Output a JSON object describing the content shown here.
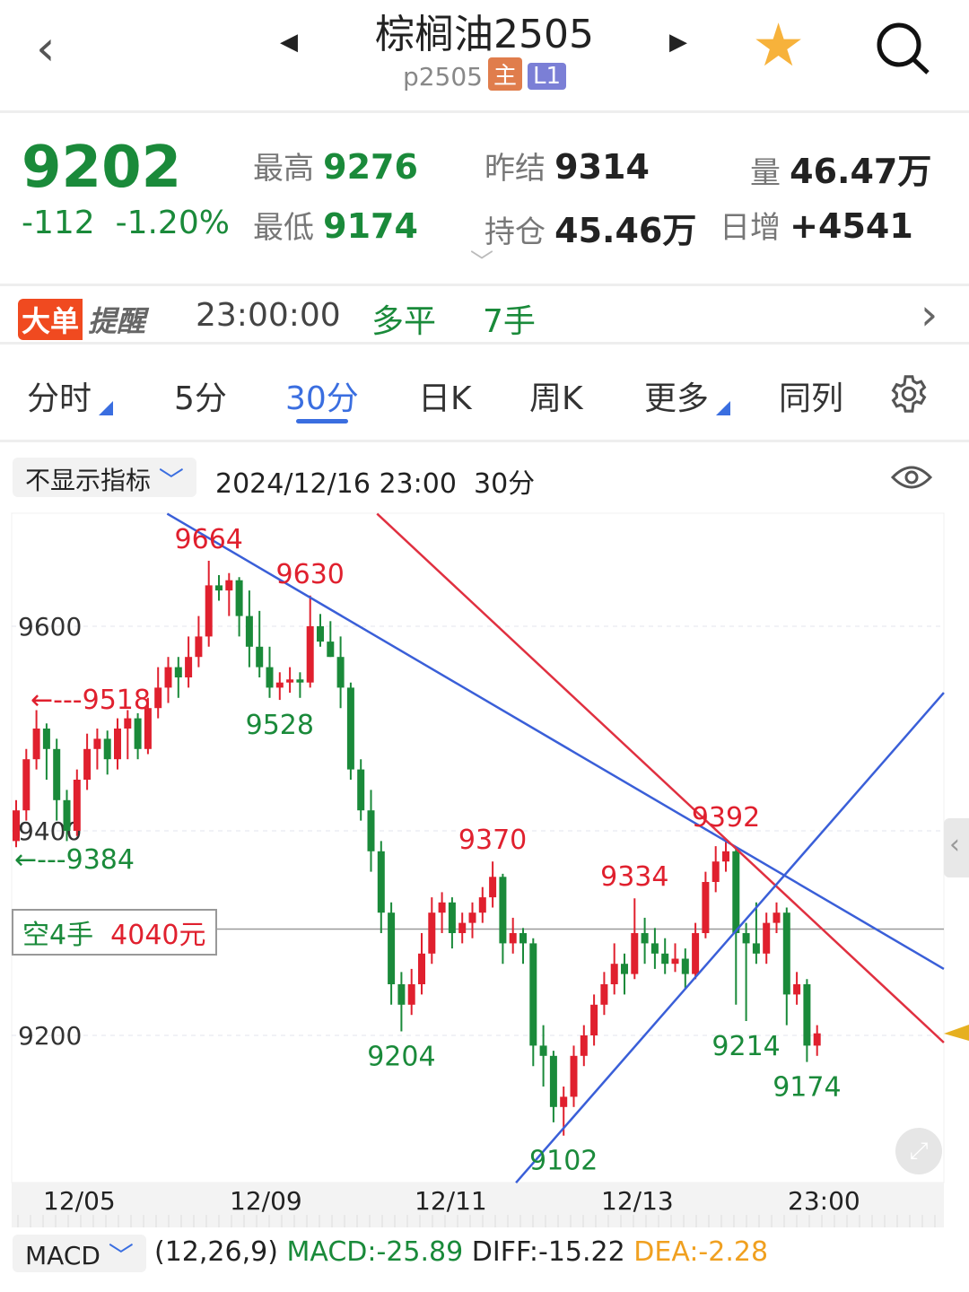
{
  "header": {
    "title": "棕榈油2505",
    "code": "p2505",
    "badge_main": "主",
    "badge_l1": "L1",
    "badge_main_color": "#e07d4c",
    "badge_l1_color": "#7b7fd6"
  },
  "quote": {
    "price": "9202",
    "change": "-112",
    "change_pct": "-1.20%",
    "high_label": "最高",
    "high": "9276",
    "low_label": "最低",
    "low": "9174",
    "prev_settle_label": "昨结",
    "prev_settle": "9314",
    "open_interest_label": "持仓",
    "open_interest": "45.46万",
    "volume_label": "量",
    "volume": "46.47万",
    "daily_inc_label": "日增",
    "daily_inc": "+4541"
  },
  "alert": {
    "tag1": "大单",
    "tag2": "提醒",
    "time": "23:00:00",
    "type": "多平",
    "qty": "7手"
  },
  "tabs": [
    {
      "label": "分时"
    },
    {
      "label": "5分"
    },
    {
      "label": "30分",
      "active": true
    },
    {
      "label": "日K"
    },
    {
      "label": "周K"
    },
    {
      "label": "更多"
    },
    {
      "label": "同列"
    }
  ],
  "indicator_bar": {
    "select": "不显示指标",
    "datetime": "2024/12/16 23:00",
    "period": "30分"
  },
  "position_tag": {
    "side": "空4手",
    "pnl": "4040元"
  },
  "macd": {
    "select": "MACD",
    "params": "(12,26,9)",
    "macd": "MACD:-25.89",
    "diff": "DIFF:-15.22",
    "dea": "DEA:-2.28"
  },
  "colors": {
    "up": "#e0202e",
    "down": "#1a8a3a",
    "accent": "#3a6ee0",
    "dea": "#f0a020"
  },
  "chart_data": {
    "type": "candlestick",
    "y_ticks": [
      "9600",
      "9400",
      "9200"
    ],
    "x_ticks": [
      "12/05",
      "12/09",
      "12/11",
      "12/13",
      "23:00"
    ],
    "grid": true,
    "candles": [
      [
        9390,
        9430,
        9384,
        9420
      ],
      [
        9420,
        9480,
        9410,
        9470
      ],
      [
        9470,
        9518,
        9460,
        9500
      ],
      [
        9500,
        9505,
        9450,
        9480
      ],
      [
        9480,
        9490,
        9410,
        9430
      ],
      [
        9430,
        9440,
        9390,
        9400
      ],
      [
        9400,
        9460,
        9395,
        9450
      ],
      [
        9450,
        9495,
        9440,
        9480
      ],
      [
        9480,
        9500,
        9460,
        9490
      ],
      [
        9490,
        9498,
        9455,
        9470
      ],
      [
        9470,
        9510,
        9460,
        9500
      ],
      [
        9500,
        9518,
        9470,
        9510
      ],
      [
        9510,
        9515,
        9470,
        9480
      ],
      [
        9480,
        9530,
        9475,
        9520
      ],
      [
        9520,
        9560,
        9510,
        9540
      ],
      [
        9540,
        9570,
        9525,
        9560
      ],
      [
        9560,
        9570,
        9530,
        9550
      ],
      [
        9550,
        9590,
        9540,
        9570
      ],
      [
        9570,
        9610,
        9560,
        9590
      ],
      [
        9590,
        9664,
        9580,
        9640
      ],
      [
        9640,
        9650,
        9625,
        9635
      ],
      [
        9635,
        9652,
        9610,
        9645
      ],
      [
        9645,
        9648,
        9590,
        9610
      ],
      [
        9610,
        9635,
        9560,
        9580
      ],
      [
        9580,
        9615,
        9550,
        9560
      ],
      [
        9560,
        9580,
        9530,
        9540
      ],
      [
        9540,
        9555,
        9528,
        9545
      ],
      [
        9545,
        9560,
        9535,
        9548
      ],
      [
        9548,
        9555,
        9530,
        9545
      ],
      [
        9545,
        9630,
        9540,
        9600
      ],
      [
        9600,
        9612,
        9580,
        9585
      ],
      [
        9585,
        9605,
        9570,
        9570
      ],
      [
        9570,
        9590,
        9520,
        9540
      ],
      [
        9540,
        9545,
        9450,
        9460
      ],
      [
        9460,
        9470,
        9410,
        9420
      ],
      [
        9420,
        9440,
        9360,
        9380
      ],
      [
        9380,
        9390,
        9300,
        9320
      ],
      [
        9320,
        9330,
        9230,
        9250
      ],
      [
        9250,
        9262,
        9204,
        9230
      ],
      [
        9230,
        9265,
        9220,
        9250
      ],
      [
        9250,
        9300,
        9240,
        9280
      ],
      [
        9280,
        9335,
        9270,
        9320
      ],
      [
        9320,
        9340,
        9300,
        9330
      ],
      [
        9330,
        9335,
        9285,
        9300
      ],
      [
        9300,
        9320,
        9290,
        9310
      ],
      [
        9310,
        9330,
        9295,
        9320
      ],
      [
        9320,
        9345,
        9310,
        9335
      ],
      [
        9335,
        9370,
        9325,
        9355
      ],
      [
        9355,
        9358,
        9270,
        9290
      ],
      [
        9290,
        9315,
        9280,
        9300
      ],
      [
        9300,
        9305,
        9270,
        9290
      ],
      [
        9290,
        9295,
        9170,
        9190
      ],
      [
        9190,
        9210,
        9150,
        9180
      ],
      [
        9180,
        9185,
        9115,
        9130
      ],
      [
        9130,
        9150,
        9102,
        9140
      ],
      [
        9140,
        9190,
        9130,
        9180
      ],
      [
        9180,
        9210,
        9170,
        9200
      ],
      [
        9200,
        9240,
        9190,
        9230
      ],
      [
        9230,
        9262,
        9220,
        9250
      ],
      [
        9250,
        9290,
        9240,
        9270
      ],
      [
        9270,
        9280,
        9240,
        9260
      ],
      [
        9260,
        9334,
        9255,
        9300
      ],
      [
        9300,
        9315,
        9270,
        9290
      ],
      [
        9290,
        9305,
        9265,
        9280
      ],
      [
        9280,
        9295,
        9260,
        9270
      ],
      [
        9270,
        9290,
        9262,
        9275
      ],
      [
        9275,
        9285,
        9245,
        9260
      ],
      [
        9260,
        9310,
        9255,
        9300
      ],
      [
        9300,
        9360,
        9295,
        9350
      ],
      [
        9350,
        9385,
        9340,
        9370
      ],
      [
        9370,
        9392,
        9360,
        9380
      ],
      [
        9380,
        9382,
        9230,
        9300
      ],
      [
        9300,
        9310,
        9214,
        9290
      ],
      [
        9290,
        9330,
        9270,
        9280
      ],
      [
        9280,
        9320,
        9270,
        9310
      ],
      [
        9310,
        9330,
        9300,
        9320
      ],
      [
        9320,
        9325,
        9210,
        9240
      ],
      [
        9240,
        9262,
        9230,
        9250
      ],
      [
        9250,
        9255,
        9174,
        9190
      ],
      [
        9190,
        9210,
        9180,
        9202
      ]
    ],
    "annotations": [
      {
        "text": "9664",
        "i": 19,
        "p": 9664,
        "kind": "high"
      },
      {
        "text": "9630",
        "i": 29,
        "p": 9630,
        "kind": "high"
      },
      {
        "text": "9528",
        "i": 26,
        "p": 9528,
        "kind": "low"
      },
      {
        "text": "9204",
        "i": 38,
        "p": 9204,
        "kind": "low"
      },
      {
        "text": "9370",
        "i": 47,
        "p": 9370,
        "kind": "high"
      },
      {
        "text": "9102",
        "i": 54,
        "p": 9102,
        "kind": "low"
      },
      {
        "text": "9334",
        "i": 61,
        "p": 9334,
        "kind": "high"
      },
      {
        "text": "9392",
        "i": 70,
        "p": 9392,
        "kind": "high"
      },
      {
        "text": "9214",
        "i": 72,
        "p": 9214,
        "kind": "low"
      },
      {
        "text": "9174",
        "i": 78,
        "p": 9174,
        "kind": "low"
      }
    ],
    "range_labels": {
      "max": "←---9518",
      "min": "←---9384"
    },
    "trendlines": [
      {
        "color": "#3a5fd8",
        "from": [
          14.9,
          9710
        ],
        "to": [
          91.5,
          9265
        ]
      },
      {
        "color": "#e03040",
        "from": [
          35.6,
          9710
        ],
        "to": [
          91.5,
          9193
        ]
      },
      {
        "color": "#3a5fd8",
        "from": [
          49.3,
          9056
        ],
        "to": [
          91.5,
          9535
        ]
      }
    ],
    "position_line_price": 9304
  }
}
